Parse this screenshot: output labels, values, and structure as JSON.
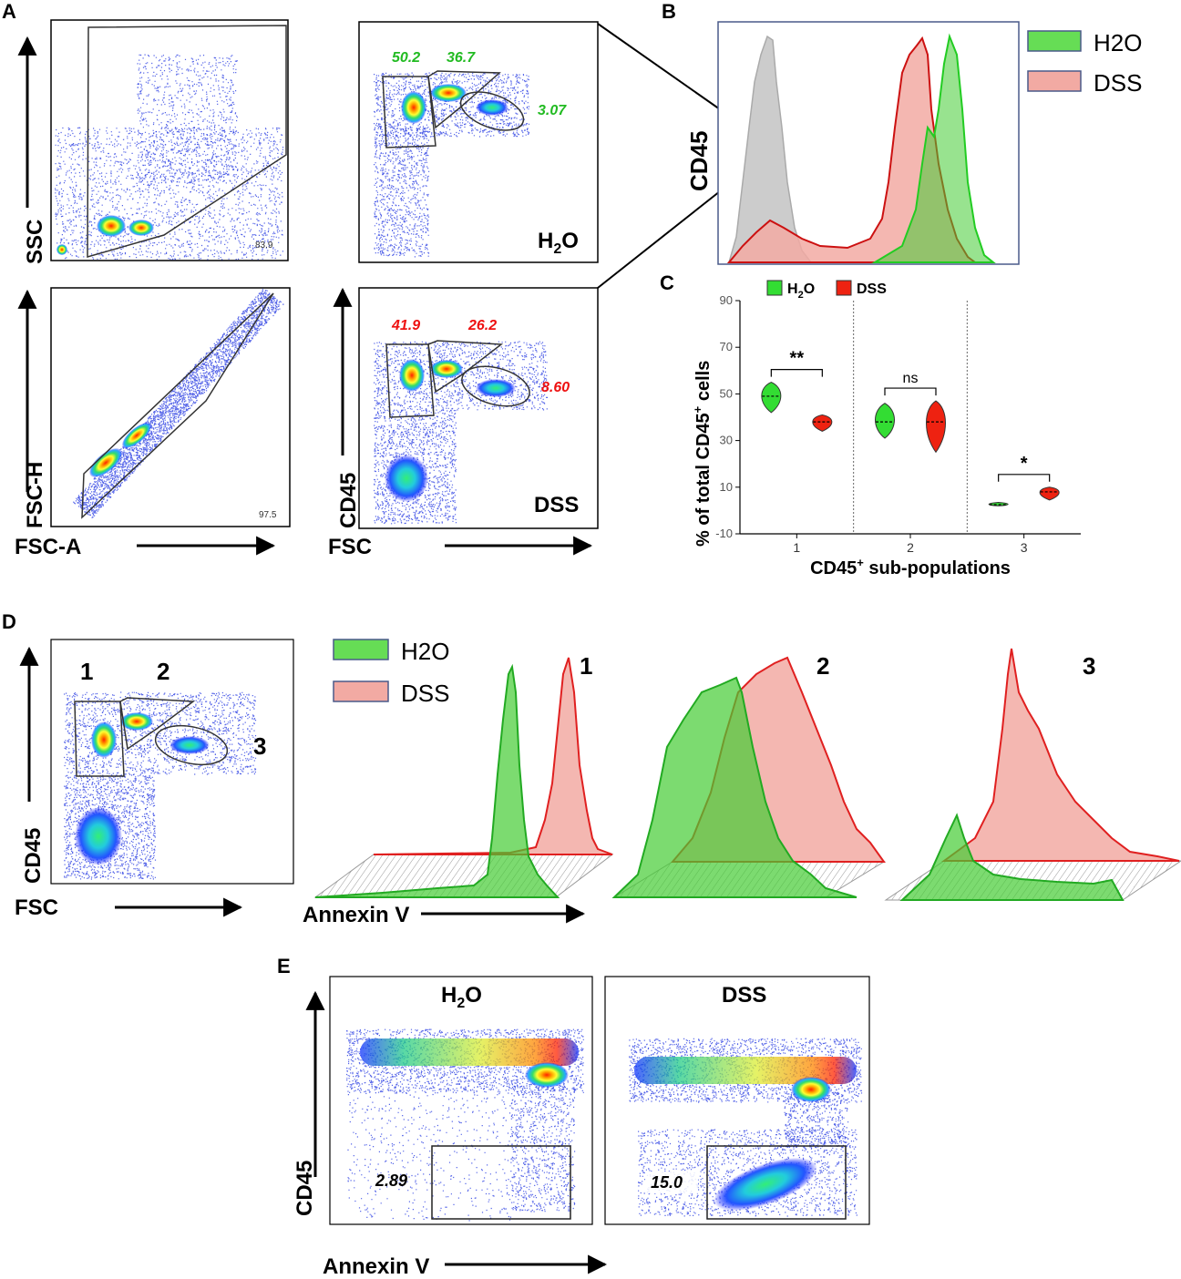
{
  "panels": {
    "A": {
      "letter": "A",
      "ssc_fsc": {
        "y_label": "SSC",
        "gate_value": "83.9"
      },
      "singlets": {
        "y_label": "FSC-H",
        "x_label": "FSC-A",
        "gate_value": "97.5"
      },
      "h2o_plot": {
        "label": "H",
        "sub": "2",
        "label_tail": "O",
        "gates": [
          "50.2",
          "36.7",
          "3.07"
        ],
        "gate_color": "#22bb22"
      },
      "dss_plot": {
        "label": "DSS",
        "gates": [
          "41.9",
          "26.2",
          "8.60"
        ],
        "gate_color": "#ee1111",
        "y_label": "CD45",
        "x_label": "FSC"
      }
    },
    "B": {
      "letter": "B",
      "y_label": "CD45",
      "legend": [
        {
          "label": "H2O",
          "color": "#66dd55"
        },
        {
          "label": "DSS",
          "color": "#f2aaa3"
        }
      ]
    },
    "C": {
      "letter": "C"
    },
    "D": {
      "letter": "D",
      "y_label": "CD45",
      "x_label": "FSC",
      "gate_labels": [
        "1",
        "2",
        "3"
      ],
      "legend": [
        {
          "label": "H2O",
          "color": "#66dd55"
        },
        {
          "label": "DSS",
          "color": "#f2aaa3"
        }
      ],
      "hist_x_label": "Annexin V",
      "hist_titles": [
        "1",
        "2",
        "3"
      ]
    },
    "E": {
      "letter": "E",
      "titles": {
        "h2o": "H",
        "h2o_sub": "2",
        "h2o_tail": "O",
        "dss": "DSS"
      },
      "y_label": "CD45",
      "x_label": "Annexin V",
      "gate_values": [
        "2.89",
        "15.0"
      ]
    }
  },
  "chart_data": {
    "type": "violin",
    "title": "",
    "xlabel": "CD45+ sub-populations",
    "xlabel_main": "CD45",
    "xlabel_sup": "+",
    "xlabel_tail": " sub-populations",
    "ylabel_main": "% of total CD45",
    "ylabel_sup": "+",
    "ylabel_tail": " cells",
    "ylim": [
      -10,
      90
    ],
    "yticks": [
      -10,
      10,
      30,
      50,
      70,
      90
    ],
    "categories": [
      "1",
      "2",
      "3"
    ],
    "legend": [
      {
        "label_main": "H",
        "label_sub": "2",
        "label_tail": "O",
        "color": "#33dd33"
      },
      {
        "label_main": "DSS",
        "label_sub": "",
        "label_tail": "",
        "color": "#ee2211"
      }
    ],
    "series": [
      {
        "name": "H2O",
        "color": "#33dd33",
        "medians": [
          49,
          38,
          2.5
        ],
        "min": [
          42,
          31,
          2
        ],
        "max": [
          55,
          46,
          3.5
        ]
      },
      {
        "name": "DSS",
        "color": "#ee2211",
        "medians": [
          38,
          38,
          8
        ],
        "min": [
          34,
          25,
          4.5
        ],
        "max": [
          41,
          47,
          10
        ]
      }
    ],
    "significance": [
      {
        "group": "1",
        "label": "**"
      },
      {
        "group": "2",
        "label": "ns"
      },
      {
        "group": "3",
        "label": "*"
      }
    ]
  }
}
